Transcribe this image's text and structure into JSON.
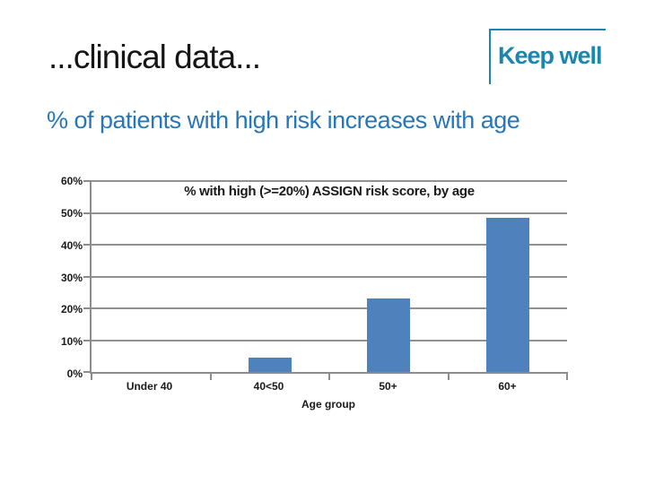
{
  "slide": {
    "title": "...clinical data...",
    "subtitle": "% of patients with high risk increases with age",
    "logo_text": "Keep well"
  },
  "colors": {
    "bar_blue": "#4f81bd",
    "subtitle_blue": "#2777b8",
    "logo_teal": "#1b86b0",
    "grid_gray": "#919191",
    "axis_gray": "#8c8c8c"
  },
  "chart_data": {
    "type": "bar",
    "title": "% with high (>=20%) ASSIGN risk score, by age",
    "categories": [
      "Under 40",
      "40<50",
      "50+",
      "60+"
    ],
    "values": [
      0,
      4.5,
      23,
      48.5
    ],
    "xlabel": "Age group",
    "ylabel": "",
    "ylim": [
      0,
      60
    ],
    "y_ticks": [
      "0%",
      "10%",
      "20%",
      "30%",
      "40%",
      "50%",
      "60%"
    ],
    "grid": true,
    "legend": false,
    "bar_color": "#4f81bd"
  }
}
